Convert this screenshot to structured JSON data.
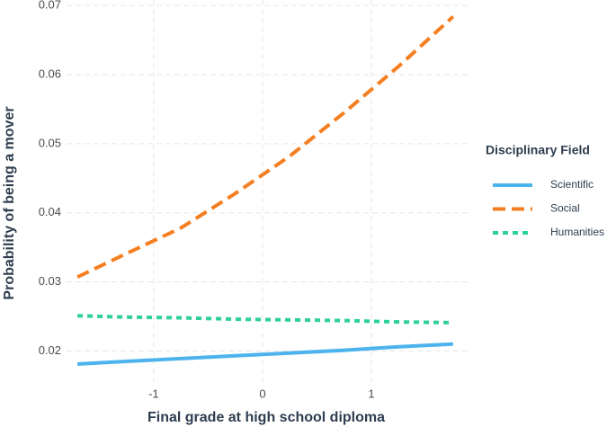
{
  "chart_data": {
    "type": "line",
    "x_label": "Final grade at high school diploma",
    "y_label": "Probability of being a mover",
    "legend_title": "Disciplinary Field",
    "legend_position": "right",
    "grid": true,
    "x": [
      -1.7,
      -1.25,
      -0.75,
      -0.25,
      0.25,
      0.75,
      1.25,
      1.75
    ],
    "series": [
      {
        "name": "Scientific",
        "color": "#4db3ed",
        "dash": "solid",
        "values": [
          0.0181,
          0.0185,
          0.0189,
          0.0193,
          0.0197,
          0.0201,
          0.0206,
          0.021
        ]
      },
      {
        "name": "Social",
        "color": "#f57f20",
        "dash": "dashed",
        "values": [
          0.0307,
          0.0341,
          0.0378,
          0.0428,
          0.0482,
          0.0545,
          0.0612,
          0.0684
        ]
      },
      {
        "name": "Humanities",
        "color": "#2ed09a",
        "dash": "dotted",
        "values": [
          0.0251,
          0.0249,
          0.0248,
          0.0246,
          0.0245,
          0.0244,
          0.0242,
          0.0241
        ]
      }
    ],
    "xlim": [
      -1.8,
      1.9
    ],
    "xticks": [
      -1,
      0,
      1
    ],
    "ylim": [
      0.0155,
      0.0708
    ],
    "yticks": [
      0.02,
      0.03,
      0.04,
      0.05,
      0.06,
      0.07
    ]
  }
}
